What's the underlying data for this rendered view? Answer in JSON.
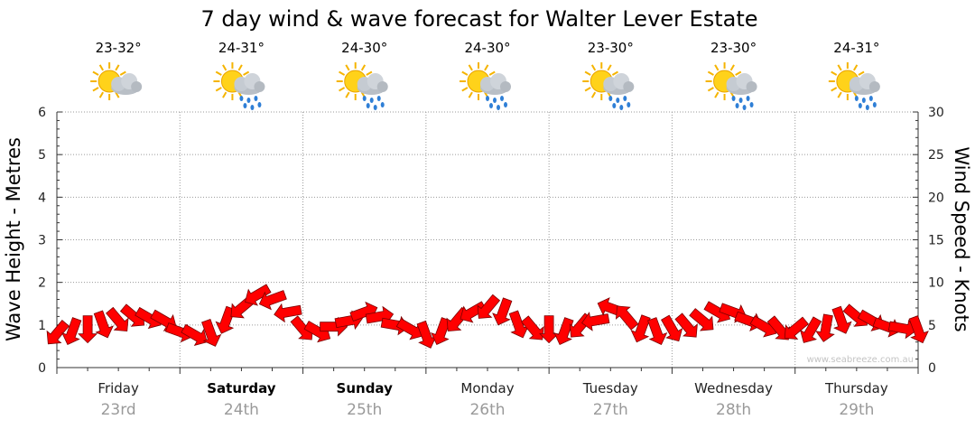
{
  "chart_data": {
    "type": "line",
    "title": "7 day wind & wave forecast for Walter Lever Estate",
    "ylabel_left": "Wave Height - Metres",
    "ylabel_right": "Wind Speed - Knots",
    "left_axis": {
      "min": 0,
      "max": 6,
      "ticks": [
        "0",
        "1",
        "2",
        "3",
        "4",
        "5",
        "6"
      ]
    },
    "right_axis": {
      "min": 0,
      "max": 30,
      "ticks": [
        "0",
        "5",
        "10",
        "15",
        "20",
        "25",
        "30"
      ]
    },
    "days": [
      {
        "name": "Friday",
        "date": "23rd",
        "temp": "23-32°",
        "weather": "partly-cloudy-icon",
        "bold": false
      },
      {
        "name": "Saturday",
        "date": "24th",
        "temp": "24-31°",
        "weather": "showers-icon",
        "bold": true
      },
      {
        "name": "Sunday",
        "date": "25th",
        "temp": "24-30°",
        "weather": "showers-icon",
        "bold": true
      },
      {
        "name": "Monday",
        "date": "26th",
        "temp": "24-30°",
        "weather": "showers-icon",
        "bold": false
      },
      {
        "name": "Tuesday",
        "date": "27th",
        "temp": "23-30°",
        "weather": "showers-icon",
        "bold": false
      },
      {
        "name": "Wednesday",
        "date": "28th",
        "temp": "23-30°",
        "weather": "showers-icon",
        "bold": false
      },
      {
        "name": "Thursday",
        "date": "29th",
        "temp": "24-31°",
        "weather": "showers-icon",
        "bold": false
      }
    ],
    "wind_arrows": {
      "units": "knots",
      "hours_step": 3,
      "speed": [
        4,
        4.2,
        4.5,
        5,
        5.5,
        6,
        5.8,
        5.5,
        4.2,
        3.8,
        4,
        5.5,
        7,
        8.5,
        8,
        6.5,
        4.5,
        4.2,
        4.8,
        5.5,
        6.5,
        6,
        5,
        4.5,
        3.8,
        4.2,
        5.5,
        6.5,
        7,
        6.5,
        5,
        4.5,
        4.5,
        4.2,
        4.8,
        5.5,
        7,
        6,
        4.5,
        4.2,
        4.5,
        4.8,
        5.5,
        6.5,
        6.5,
        5.5,
        4.8,
        4.5,
        4.5,
        4.3,
        4.6,
        5.5,
        6,
        5.5,
        4.8,
        4.6,
        4.4
      ],
      "direction_deg": [
        220,
        200,
        180,
        160,
        140,
        130,
        120,
        120,
        110,
        120,
        160,
        200,
        230,
        240,
        250,
        260,
        140,
        120,
        90,
        80,
        70,
        80,
        100,
        120,
        160,
        200,
        220,
        240,
        220,
        200,
        160,
        140,
        180,
        200,
        220,
        260,
        290,
        320,
        200,
        160,
        150,
        140,
        130,
        120,
        110,
        110,
        120,
        140,
        230,
        210,
        190,
        160,
        130,
        120,
        110,
        100,
        160
      ]
    },
    "watermark": "www.seabreeze.com.au"
  }
}
